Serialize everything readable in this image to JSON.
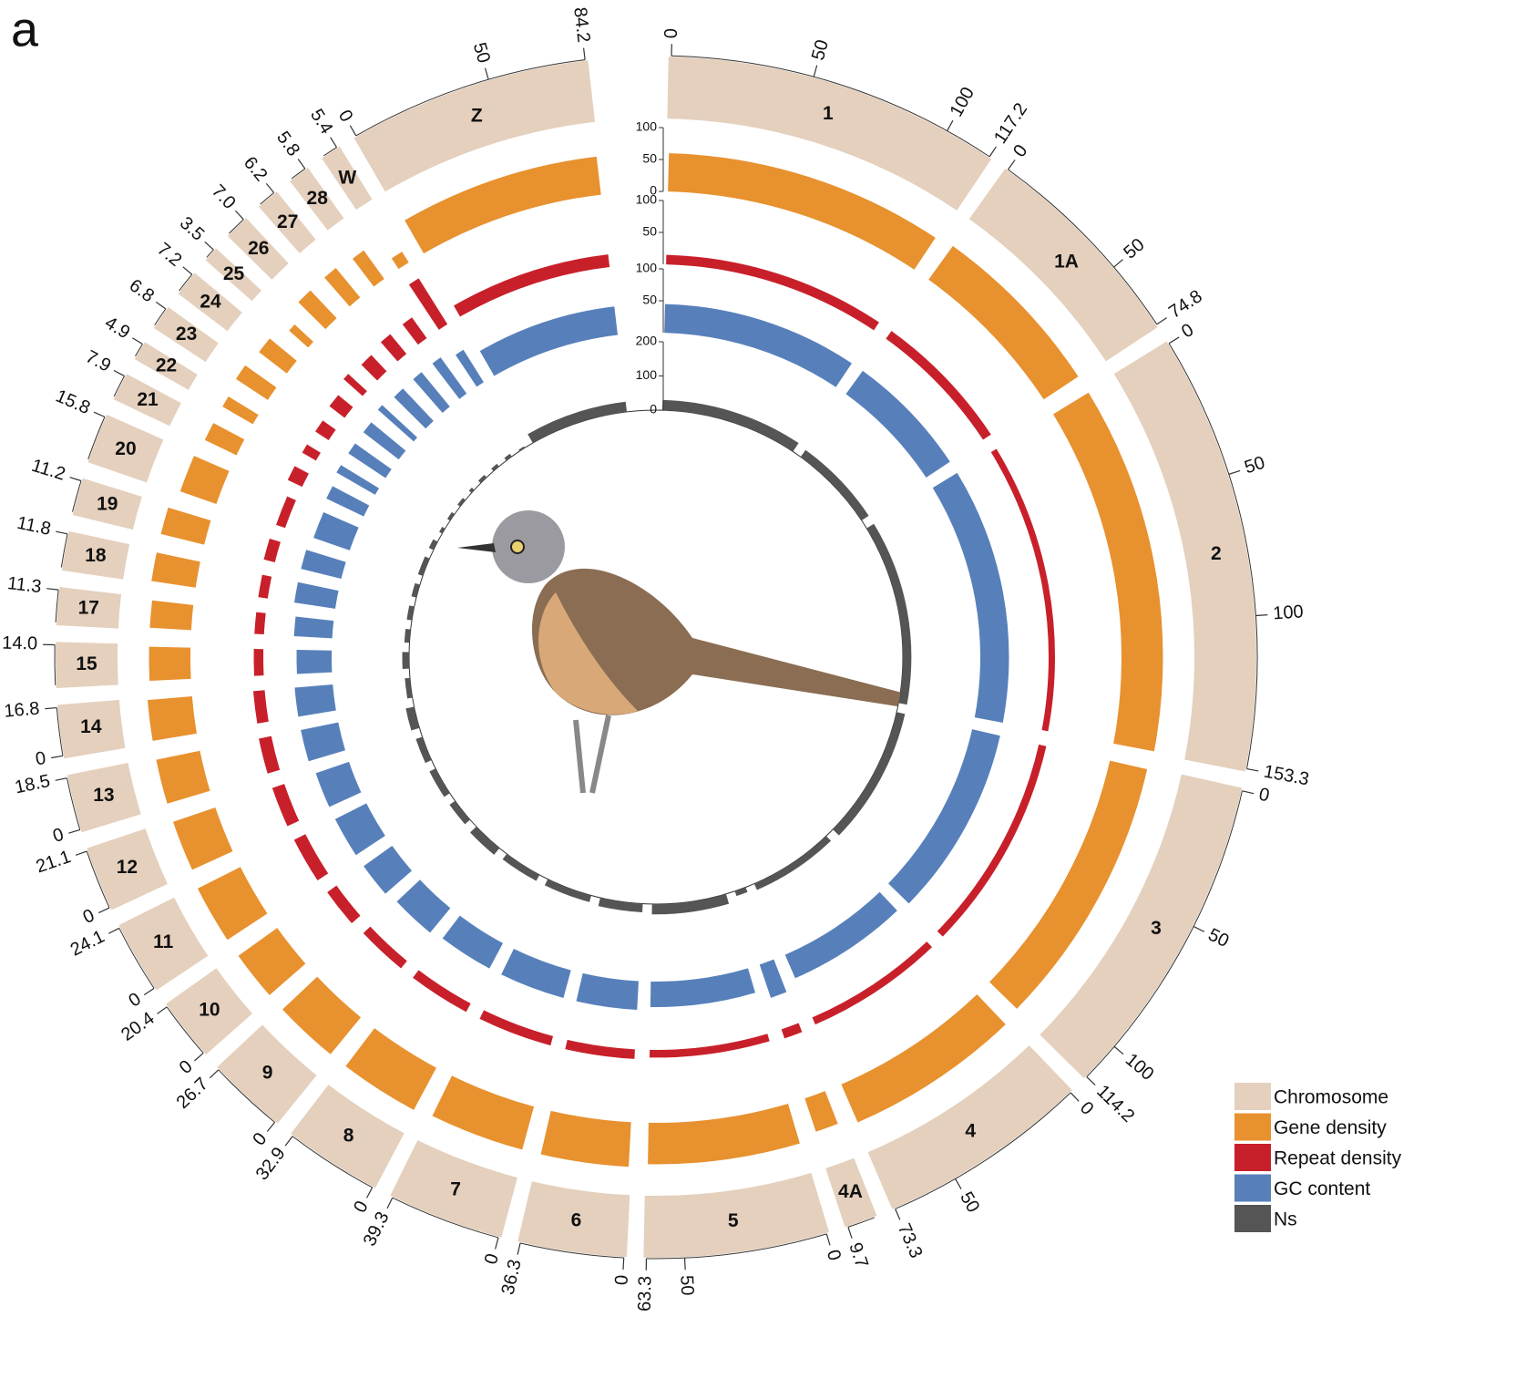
{
  "chart_data": {
    "type": "circos",
    "panel_label": "a",
    "chromosome_label": "Chromosome",
    "chromosome_color": "#e4d0bd",
    "chromosomes": [
      {
        "name": "1",
        "size": 117.2,
        "ticks": [
          0,
          50,
          100,
          117.2
        ]
      },
      {
        "name": "1A",
        "size": 74.8,
        "ticks": [
          0,
          50,
          74.8
        ]
      },
      {
        "name": "2",
        "size": 153.3,
        "ticks": [
          0,
          50,
          100,
          153.3
        ]
      },
      {
        "name": "3",
        "size": 114.2,
        "ticks": [
          0,
          50,
          100,
          114.2
        ]
      },
      {
        "name": "4",
        "size": 73.3,
        "ticks": [
          0,
          50,
          73.3
        ]
      },
      {
        "name": "4A",
        "size": 9.7,
        "ticks": [
          9.7
        ]
      },
      {
        "name": "5",
        "size": 63.3,
        "ticks": [
          0,
          50,
          63.3
        ]
      },
      {
        "name": "6",
        "size": 36.3,
        "ticks": [
          0,
          36.3
        ]
      },
      {
        "name": "7",
        "size": 39.3,
        "ticks": [
          0,
          39.3
        ]
      },
      {
        "name": "8",
        "size": 32.9,
        "ticks": [
          0,
          32.9
        ]
      },
      {
        "name": "9",
        "size": 26.7,
        "ticks": [
          0,
          26.7
        ]
      },
      {
        "name": "10",
        "size": 20.4,
        "ticks": [
          0,
          20.4
        ]
      },
      {
        "name": "11",
        "size": 24.1,
        "ticks": [
          0,
          24.1
        ]
      },
      {
        "name": "12",
        "size": 21.1,
        "ticks": [
          0,
          21.1
        ]
      },
      {
        "name": "13",
        "size": 18.5,
        "ticks": [
          0,
          18.5
        ]
      },
      {
        "name": "14",
        "size": 16.8,
        "ticks": [
          0,
          16.8
        ]
      },
      {
        "name": "15",
        "size": 14,
        "ticks": [
          {
            "value": 14,
            "label": "14.0"
          }
        ]
      },
      {
        "name": "17",
        "size": 11.3,
        "ticks": [
          11.3
        ]
      },
      {
        "name": "18",
        "size": 11.8,
        "ticks": [
          11.8
        ]
      },
      {
        "name": "19",
        "size": 11.2,
        "ticks": [
          11.2
        ]
      },
      {
        "name": "20",
        "size": 15.8,
        "ticks": [
          15.8
        ]
      },
      {
        "name": "21",
        "size": 7.9,
        "ticks": [
          7.9
        ]
      },
      {
        "name": "22",
        "size": 4.9,
        "ticks": [
          4.9
        ]
      },
      {
        "name": "23",
        "size": 6.8,
        "ticks": [
          6.8
        ]
      },
      {
        "name": "24",
        "size": 7.2,
        "ticks": [
          7.2
        ]
      },
      {
        "name": "25",
        "size": 3.5,
        "ticks": [
          3.5
        ]
      },
      {
        "name": "26",
        "size": 7,
        "ticks": [
          {
            "value": 7,
            "label": "7.0"
          }
        ]
      },
      {
        "name": "27",
        "size": 6.2,
        "ticks": [
          6.2
        ]
      },
      {
        "name": "28",
        "size": 5.8,
        "ticks": [
          5.8
        ]
      },
      {
        "name": "W",
        "size": 5.4,
        "ticks": [
          5.4
        ]
      },
      {
        "name": "Z",
        "size": 84.2,
        "ticks": [
          0,
          50,
          84.2
        ]
      }
    ],
    "tracks": [
      {
        "name": "Gene density",
        "color": "#e8912f",
        "ylim": [
          0,
          100
        ],
        "yticks": [
          0,
          50,
          100
        ],
        "values": [
          60,
          65,
          65,
          60,
          65,
          55,
          65,
          70,
          70,
          75,
          75,
          75,
          75,
          70,
          70,
          70,
          65,
          65,
          70,
          70,
          60,
          55,
          55,
          60,
          55,
          40,
          60,
          60,
          55,
          20,
          60
        ]
      },
      {
        "name": "Repeat density",
        "color": "#c8202a",
        "ylim": [
          0,
          100
        ],
        "yticks": [
          50,
          100
        ],
        "values": [
          15,
          15,
          10,
          12,
          12,
          15,
          12,
          15,
          15,
          15,
          15,
          18,
          20,
          20,
          20,
          18,
          15,
          15,
          15,
          18,
          15,
          25,
          25,
          25,
          30,
          40,
          35,
          40,
          40,
          85,
          20
        ]
      },
      {
        "name": "GC content",
        "color": "#5780bb",
        "ylim": [
          0,
          100
        ],
        "yticks": [
          50,
          100
        ],
        "values": [
          45,
          45,
          45,
          45,
          40,
          55,
          40,
          45,
          45,
          45,
          50,
          55,
          55,
          55,
          60,
          60,
          55,
          60,
          65,
          65,
          60,
          65,
          70,
          70,
          70,
          75,
          70,
          70,
          70,
          60,
          45
        ]
      },
      {
        "name": "Ns",
        "color": "#555555",
        "ylim": [
          0,
          200
        ],
        "yticks": [
          0,
          100,
          200
        ],
        "values": [
          30,
          25,
          25,
          25,
          20,
          15,
          30,
          25,
          20,
          20,
          25,
          20,
          20,
          20,
          25,
          15,
          20,
          15,
          15,
          15,
          15,
          15,
          10,
          10,
          10,
          10,
          10,
          10,
          10,
          5,
          30
        ]
      }
    ]
  }
}
